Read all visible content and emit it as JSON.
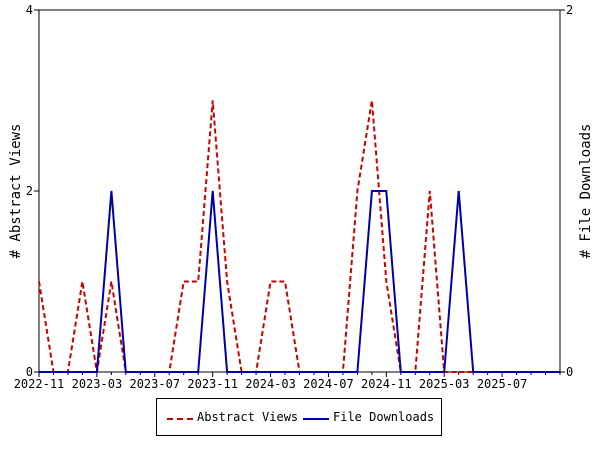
{
  "chart_data": {
    "type": "line",
    "categories": [
      "2022-11",
      "2022-12",
      "2023-01",
      "2023-02",
      "2023-03",
      "2023-04",
      "2023-05",
      "2023-06",
      "2023-07",
      "2023-08",
      "2023-09",
      "2023-10",
      "2023-11",
      "2023-12",
      "2024-01",
      "2024-02",
      "2024-03",
      "2024-04",
      "2024-05",
      "2024-06",
      "2024-07",
      "2024-08",
      "2024-09",
      "2024-10",
      "2024-11",
      "2024-12",
      "2025-01",
      "2025-02",
      "2025-03",
      "2025-04",
      "2025-05",
      "2025-06",
      "2025-07",
      "2025-08",
      "2025-09",
      "2025-10",
      "2025-11"
    ],
    "x_tick_labels": [
      "2022-11",
      "2023-03",
      "2023-07",
      "2023-11",
      "2024-03",
      "2024-07",
      "2024-11",
      "2025-03",
      "2025-07"
    ],
    "series": [
      {
        "name": "Abstract Views",
        "axis": "left",
        "color": "#cc0000",
        "style": "dashed",
        "values": [
          1,
          0,
          0,
          1,
          0,
          1,
          0,
          0,
          0,
          0,
          1,
          1,
          3,
          1,
          0,
          0,
          1,
          1,
          0,
          0,
          0,
          0,
          2,
          3,
          1,
          0,
          0,
          2,
          0,
          0,
          0,
          0,
          0,
          0,
          0,
          0,
          0
        ]
      },
      {
        "name": "File Downloads",
        "axis": "right",
        "color": "#0000aa",
        "style": "solid",
        "values": [
          0,
          0,
          0,
          0,
          0,
          1,
          0,
          0,
          0,
          0,
          0,
          0,
          1,
          0,
          0,
          0,
          0,
          0,
          0,
          0,
          0,
          0,
          0,
          1,
          1,
          0,
          0,
          0,
          0,
          1,
          0,
          0,
          0,
          0,
          0,
          0,
          0
        ]
      }
    ],
    "ylabel_left": "# Abstract Views",
    "ylabel_right": "# File Downloads",
    "ylim_left": [
      0,
      4
    ],
    "ylim_right": [
      0,
      2
    ],
    "yticks_left": [
      "0",
      "2",
      "4"
    ],
    "yticks_right": [
      "0",
      "2"
    ],
    "legend_position": "bottom"
  }
}
